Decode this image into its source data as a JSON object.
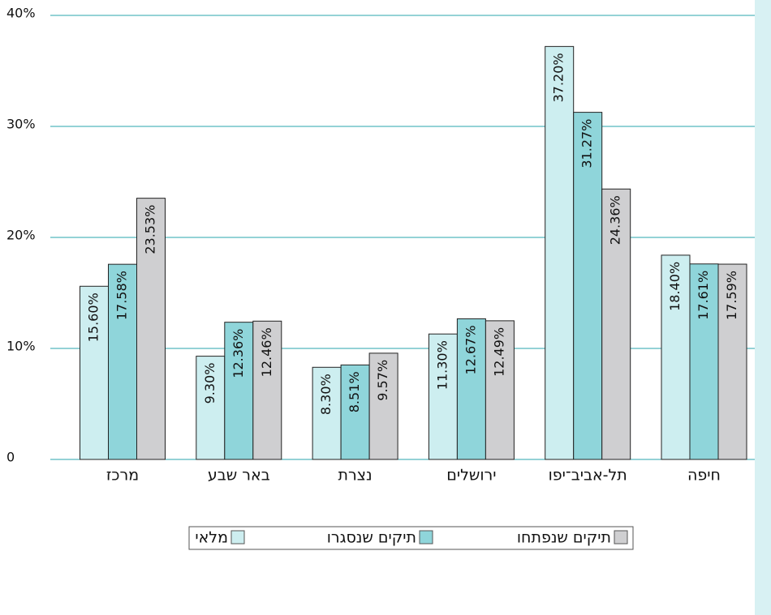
{
  "chart_data": {
    "type": "bar",
    "categories": [
      "מרכז",
      "באר שבע",
      "נצרת",
      "ירושלים",
      "תל-אביב־יפו",
      "חיפה"
    ],
    "series": [
      {
        "name": "מלאי",
        "color": "#cdeef0",
        "values": [
          15.6,
          9.3,
          8.3,
          11.3,
          37.2,
          18.4
        ],
        "value_labels": [
          "15.60%",
          "9.30%",
          "8.30%",
          "11.30%",
          "37.20%",
          "18.40%"
        ]
      },
      {
        "name": "תיקים שנסגרו",
        "color": "#8fd5da",
        "values": [
          17.58,
          12.36,
          8.51,
          12.67,
          31.27,
          17.61
        ],
        "value_labels": [
          "17.58%",
          "12.36%",
          "8.51%",
          "12.67%",
          "31.27%",
          "17.61%"
        ]
      },
      {
        "name": "תיקים שנפתחו",
        "color": "#cfcfd1",
        "values": [
          23.53,
          12.46,
          9.57,
          12.49,
          24.36,
          17.59
        ],
        "value_labels": [
          "23.53%",
          "12.46%",
          "9.57%",
          "12.49%",
          "24.36%",
          "17.59%"
        ]
      }
    ],
    "ylim": [
      0,
      40
    ],
    "yticks": [
      0,
      {
        "value": 10,
        "label": "10%"
      },
      {
        "value": 20,
        "label": "20%"
      },
      {
        "value": 30,
        "label": "30%"
      },
      {
        "value": 40,
        "label": "40%"
      }
    ],
    "grid": true
  }
}
